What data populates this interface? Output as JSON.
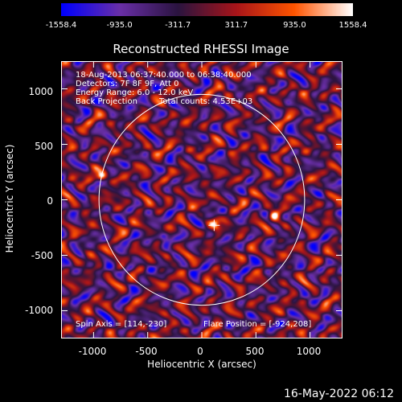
{
  "colorbar": {
    "ticks": [
      "-1558.4",
      "-935.0",
      "-311.7",
      "311.7",
      "935.0",
      "1558.4"
    ],
    "range": [
      -1558.4,
      1558.4
    ]
  },
  "chart_data": {
    "type": "heatmap",
    "title": "Reconstructed RHESSI Image",
    "xlabel": "Heliocentric X (arcsec)",
    "ylabel": "Heliocentric Y (arcsec)",
    "xlim": [
      -1300,
      1300
    ],
    "ylim": [
      -1250,
      1250
    ],
    "xticks": [
      "-1000",
      "-500",
      "0",
      "500",
      "1000"
    ],
    "yticks": [
      "1000",
      "500",
      "0",
      "-500",
      "-1000"
    ],
    "xtick_values": [
      -1000,
      -500,
      0,
      500,
      1000
    ],
    "ytick_values": [
      1000,
      500,
      0,
      -500,
      -1000
    ],
    "solar_disk_radius": 950,
    "cross_marker": [
      114,
      -230
    ],
    "hotspots": [
      {
        "x": -924,
        "y": 208,
        "value": 1558.4
      },
      {
        "x": 660,
        "y": -150,
        "value": 1300
      },
      {
        "x": 120,
        "y": -200,
        "value": 1100
      }
    ],
    "coldspots": [
      {
        "x": -350,
        "y": -330,
        "value": -1558.4
      }
    ],
    "annotations": {
      "time": "18-Aug-2013 06:37:40.000 to 06:38:40.000",
      "detectors": "Detectors: 7F 8F 9F, Att 0",
      "energy": "Energy Range: 6.0 - 12.0 keV",
      "method": "Back Projection",
      "counts": "Total counts: 4.53E+03",
      "spin_axis": "Spin Axis = [114,-230]",
      "flare_position": "Flare Position = [-924,208]"
    }
  },
  "footer": "16-May-2022 06:12",
  "colors": {
    "background": "#000000",
    "colormap": [
      "#0000ff",
      "#6a2fa8",
      "#2b1440",
      "#a8151a",
      "#ff5500",
      "#ffffff"
    ]
  }
}
